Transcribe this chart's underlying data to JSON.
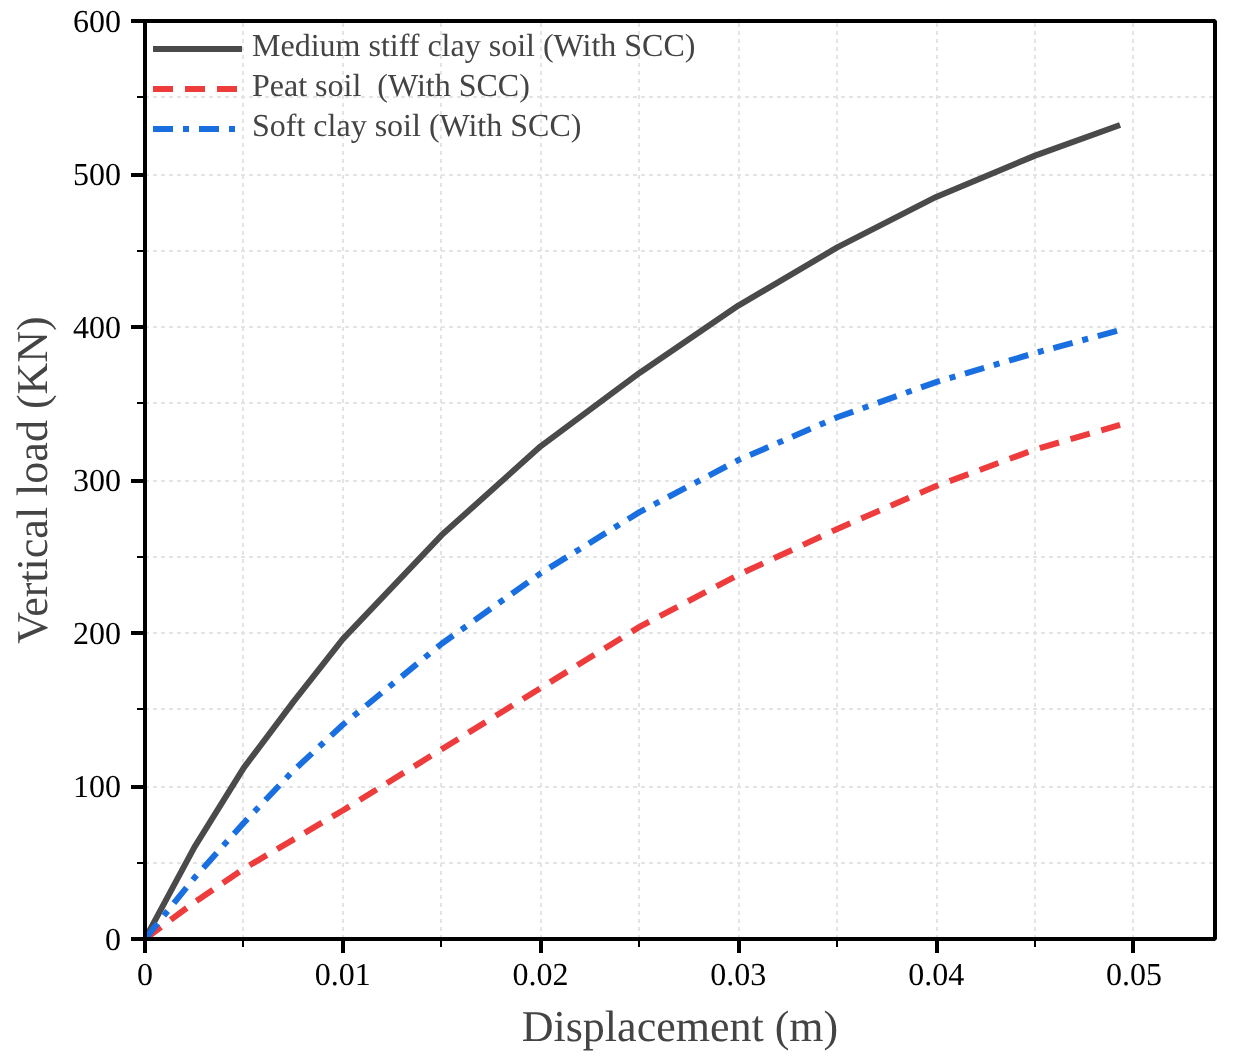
{
  "chart_data": {
    "type": "line",
    "xlabel": "Displacement (m)",
    "ylabel": "Vertical load (KN)",
    "x": [
      0,
      0.0025,
      0.005,
      0.0075,
      0.01,
      0.015,
      0.02,
      0.025,
      0.03,
      0.035,
      0.04,
      0.045,
      0.0493
    ],
    "series": [
      {
        "name": "Medium stiff clay soil (With SCC)",
        "color": "#4a4a4a",
        "line_style": "solid",
        "values": [
          0,
          60,
          112,
          155,
          196,
          264,
          322,
          370,
          414,
          452,
          485,
          512,
          532
        ]
      },
      {
        "name": "Peat soil  (With SCC)",
        "color": "#ee3b3b",
        "line_style": "dashed",
        "values": [
          0,
          24,
          46,
          65,
          84,
          124,
          164,
          204,
          238,
          268,
          296,
          320,
          336
        ]
      },
      {
        "name": "Soft clay soil (With SCC)",
        "color": "#1a6fe0",
        "line_style": "dashdot",
        "values": [
          0,
          40,
          76,
          110,
          140,
          193,
          239,
          279,
          313,
          341,
          364,
          383,
          398
        ]
      }
    ],
    "xlim": [
      0,
      0.0541
    ],
    "ylim": [
      0,
      600
    ],
    "xticks": [
      0,
      0.01,
      0.02,
      0.03,
      0.04,
      0.05
    ],
    "yticks": [
      0,
      100,
      200,
      300,
      400,
      500,
      600
    ],
    "grid": true,
    "legend": "top left"
  }
}
